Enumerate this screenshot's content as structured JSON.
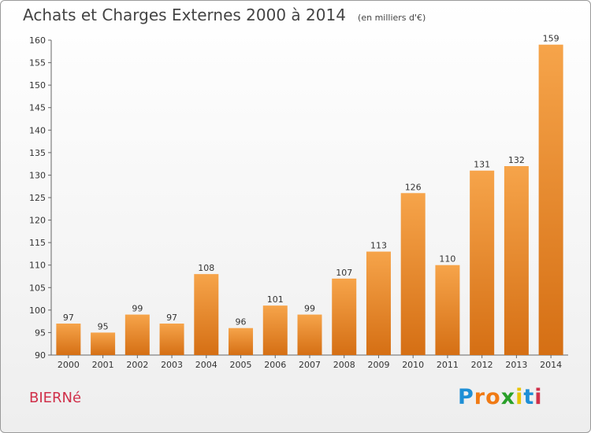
{
  "chart_data": {
    "type": "bar",
    "title": "Achats et Charges Externes 2000 à 2014",
    "unit_note": "(en milliers d'€)",
    "categories": [
      "2000",
      "2001",
      "2002",
      "2003",
      "2004",
      "2005",
      "2006",
      "2007",
      "2008",
      "2009",
      "2010",
      "2011",
      "2012",
      "2013",
      "2014"
    ],
    "values": [
      97,
      95,
      99,
      97,
      108,
      96,
      101,
      99,
      107,
      113,
      126,
      110,
      131,
      132,
      159
    ],
    "ylim": [
      90,
      160
    ],
    "yticks": [
      90,
      95,
      100,
      105,
      110,
      115,
      120,
      125,
      130,
      135,
      140,
      145,
      150,
      155,
      160
    ],
    "grid": false,
    "bar_color": "#f0983a"
  },
  "commune": "BIERNé",
  "logo": {
    "letters": [
      "P",
      "r",
      "o",
      "x",
      "i",
      "t",
      "i"
    ],
    "colors": [
      "#1e8fd6",
      "#f07a14",
      "#f07a14",
      "#2aa02a",
      "#e8c400",
      "#1e8fd6",
      "#d0304a"
    ]
  }
}
